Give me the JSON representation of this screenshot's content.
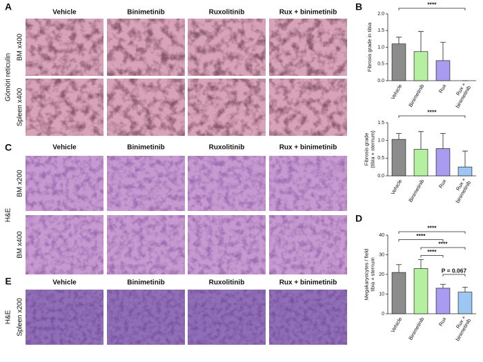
{
  "panels": {
    "A": {
      "letter": "A",
      "columns": [
        "Vehicle",
        "Binimetinib",
        "Ruxolitinib",
        "Rux + binimetinib"
      ],
      "group": "Gömöri reticulin",
      "rows": [
        "BM x400",
        "Spleen x400"
      ]
    },
    "B": {
      "letter": "B"
    },
    "C": {
      "letter": "C",
      "columns": [
        "Vehicle",
        "Binimetinib",
        "Ruxolitinib",
        "Rux + binimetinib"
      ],
      "group": "H&E",
      "rows": [
        "BM x200",
        "BM x400"
      ]
    },
    "D": {
      "letter": "D"
    },
    "E": {
      "letter": "E",
      "columns": [
        "Vehicle",
        "Binimetinib",
        "Ruxolitinib",
        "Rux + binimetinib"
      ],
      "group": "H&E",
      "rows": [
        "Spleen x200"
      ]
    }
  },
  "chart_data": [
    {
      "type": "bar",
      "y_label": [
        "Fibrosis grade in tibia"
      ],
      "categories": [
        [
          "Vehicle"
        ],
        [
          "Binimetinib"
        ],
        [
          "Rux"
        ],
        [
          "Rux +",
          "binimetinib"
        ]
      ],
      "values": [
        1.1,
        0.87,
        0.6,
        0
      ],
      "errors": [
        0.2,
        0.6,
        0.55,
        0
      ],
      "colors": [
        "#8c8c8c",
        "#b4f0a0",
        "#a99cf0",
        "#9ec6f2"
      ],
      "ylim": [
        0,
        2
      ],
      "yticks": [
        {
          "value": 0,
          "label": "0.0"
        },
        0.5,
        {
          "value": 1,
          "label": "1.0"
        },
        1.5,
        {
          "value": 2,
          "label": "2.0"
        }
      ],
      "annotations": [
        "****"
      ]
    },
    {
      "type": "bar",
      "y_label": [
        "Fibrosis grade",
        "(tibia + sternum)"
      ],
      "categories": [
        [
          "Vehicle"
        ],
        [
          "Binimetinib"
        ],
        [
          "Rux"
        ],
        [
          "Rux +",
          "binimetinib"
        ]
      ],
      "values": [
        1.03,
        0.75,
        0.77,
        0.25
      ],
      "errors": [
        0.17,
        0.5,
        0.43,
        0.45
      ],
      "colors": [
        "#8c8c8c",
        "#b4f0a0",
        "#a99cf0",
        "#9ec6f2"
      ],
      "ylim": [
        0,
        1.5
      ],
      "yticks": [
        {
          "value": 0,
          "label": "0.0"
        },
        0.5,
        {
          "value": 1,
          "label": "1.0"
        },
        1.5
      ],
      "annotations": [
        "****"
      ]
    },
    {
      "type": "bar",
      "y_label": [
        "Megakaryocytes / field",
        "tibia + sternum"
      ],
      "categories": [
        [
          "Vehicle"
        ],
        [
          "Binimetinib"
        ],
        [
          "Rux"
        ],
        [
          "Rux +",
          "binimetinib"
        ]
      ],
      "values": [
        21,
        23,
        13,
        11
      ],
      "errors": [
        4,
        4.5,
        2,
        2.5
      ],
      "colors": [
        "#8c8c8c",
        "#b4f0a0",
        "#a99cf0",
        "#9ec6f2"
      ],
      "ylim": [
        0,
        40
      ],
      "yticks": [
        0,
        10,
        20,
        30,
        40
      ],
      "annotations": [
        "****",
        "****",
        "****",
        "****",
        "P = 0.067"
      ]
    }
  ]
}
